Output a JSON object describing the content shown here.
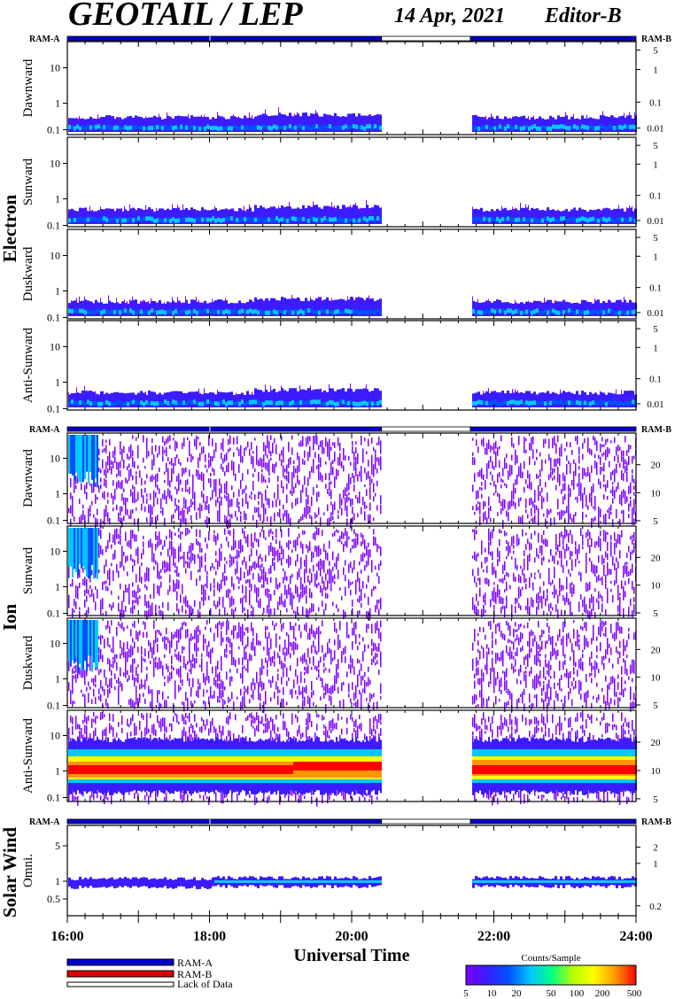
{
  "header": {
    "title": "GEOTAIL / LEP",
    "date": "14 Apr, 2021",
    "editor": "Editor-B"
  },
  "ram_labels": {
    "left": "RAM-A",
    "right": "RAM-B"
  },
  "groups": {
    "electron": "Electron",
    "ion": "Ion",
    "solar_wind": "Solar Wind"
  },
  "xaxis": {
    "label": "Universal Time",
    "ticks": [
      "16:00",
      "18:00",
      "20:00",
      "22:00",
      "24:00"
    ]
  },
  "legend": {
    "ram_a": "RAM-A",
    "ram_b": "RAM-B",
    "lack": "Lack of Data",
    "colorbar_title": "Counts/Sample",
    "colorbar_ticks": [
      "5",
      "10",
      "20",
      "50",
      "100",
      "200",
      "500"
    ]
  },
  "colors": {
    "ram_a": "#0000cc",
    "ram_b": "#dd0000",
    "lack": "#ffffff",
    "colorscale": [
      "#ffffff",
      "#7f00ff",
      "#3a1cff",
      "#0050ff",
      "#00c8ff",
      "#00ff88",
      "#b4ff00",
      "#ffff00",
      "#ff9600",
      "#ff0000"
    ]
  },
  "chart_data": {
    "type": "heatmap",
    "time_range_hours": [
      16,
      24
    ],
    "data_gap_hours": [
      20.42,
      21.67
    ],
    "ram_bar_segments": [
      {
        "from": 16,
        "to": 20.42,
        "mode": "RAM-A"
      },
      {
        "from": 20.42,
        "to": 21.67,
        "mode": "Lack of Data"
      },
      {
        "from": 21.67,
        "to": 24,
        "mode": "RAM-A"
      }
    ],
    "panels": [
      {
        "id": "e-dawn",
        "group": "Electron",
        "name": "Dawnward",
        "left_ticks": [
          "10",
          "1",
          "0.1"
        ],
        "right_ticks": [
          "5",
          "1",
          "0.1",
          "0.01"
        ]
      },
      {
        "id": "e-sun",
        "group": "Electron",
        "name": "Sunward",
        "left_ticks": [
          "10",
          "1",
          "0.1"
        ],
        "right_ticks": [
          "5",
          "1",
          "0.1",
          "0.01"
        ]
      },
      {
        "id": "e-dusk",
        "group": "Electron",
        "name": "Duskward",
        "left_ticks": [
          "10",
          "1",
          "0.1"
        ],
        "right_ticks": [
          "5",
          "1",
          "0.1",
          "0.01"
        ]
      },
      {
        "id": "e-anti",
        "group": "Electron",
        "name": "Anti-Sunward",
        "left_ticks": [
          "10",
          "1",
          "0.1"
        ],
        "right_ticks": [
          "5",
          "1",
          "0.1",
          "0.01"
        ]
      },
      {
        "id": "i-dawn",
        "group": "Ion",
        "name": "Dawnward",
        "left_ticks": [
          "10",
          "1",
          "0.1"
        ],
        "right_ticks": [
          "20",
          "10",
          "5"
        ]
      },
      {
        "id": "i-sun",
        "group": "Ion",
        "name": "Sunward",
        "left_ticks": [
          "10",
          "1",
          "0.1"
        ],
        "right_ticks": [
          "20",
          "10",
          "5"
        ]
      },
      {
        "id": "i-dusk",
        "group": "Ion",
        "name": "Duskward",
        "left_ticks": [
          "10",
          "1",
          "0.1"
        ],
        "right_ticks": [
          "20",
          "10",
          "5"
        ]
      },
      {
        "id": "i-anti",
        "group": "Ion",
        "name": "Anti-Sunward",
        "left_ticks": [
          "10",
          "1",
          "0.1"
        ],
        "right_ticks": [
          "20",
          "10",
          "5"
        ]
      },
      {
        "id": "sw-omni",
        "group": "Solar Wind",
        "name": "Omni.",
        "left_ticks": [
          "5",
          "1",
          "0.5"
        ],
        "right_ticks": [
          "2",
          "1",
          "0.2"
        ]
      }
    ]
  }
}
